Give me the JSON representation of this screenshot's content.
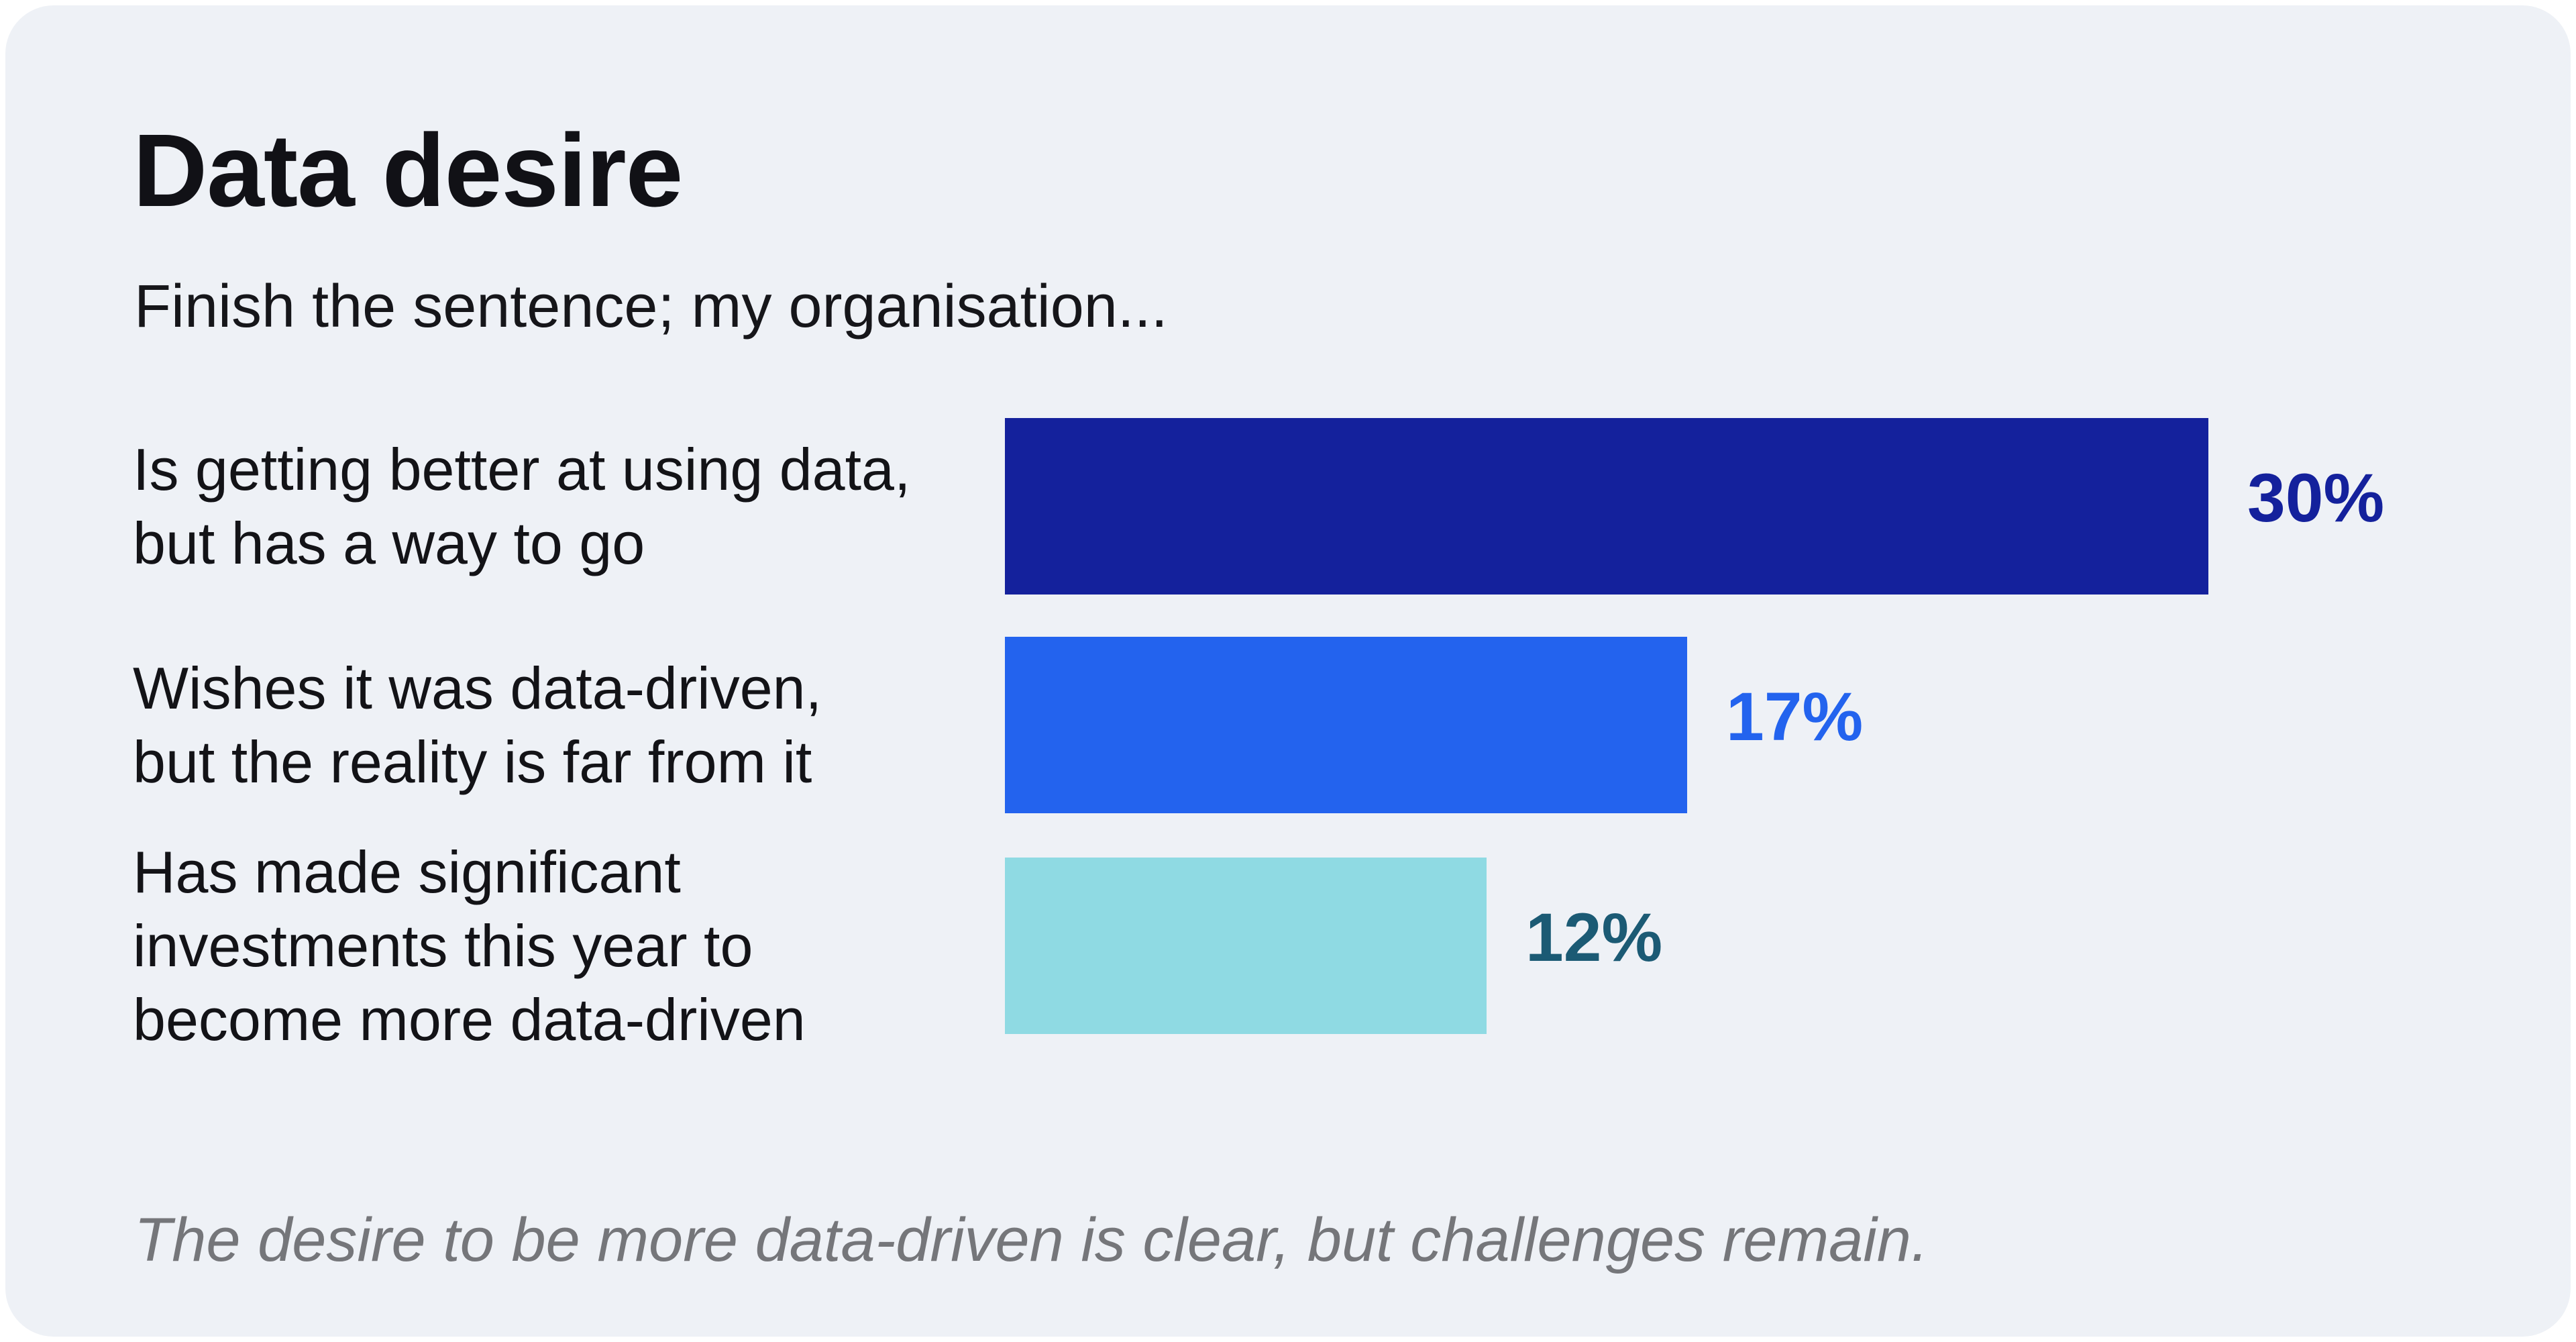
{
  "card": {
    "background_color": "#EEF1F6",
    "title": "Data desire",
    "subtitle": "Finish the sentence; my organisation...",
    "footnote": "The desire to be more data-driven is clear, but challenges remain."
  },
  "chart_data": {
    "type": "bar",
    "orientation": "horizontal",
    "title": "Data desire",
    "subtitle": "Finish the sentence; my organisation...",
    "unit": "%",
    "xlim": [
      0,
      30
    ],
    "grid": false,
    "legend": false,
    "categories": [
      "Is getting better at using data, but has a way to go",
      "Wishes it was data-driven, but the reality is far from it",
      "Has made significant investments this year to become more data-driven"
    ],
    "values": [
      30,
      17,
      12
    ],
    "rows": [
      {
        "label_lines": [
          "Is getting better at using data,",
          "but has a way to go"
        ],
        "value": 30,
        "value_label": "30%",
        "bar_color": "#14219C",
        "value_color": "#14219C"
      },
      {
        "label_lines": [
          "Wishes it was data-driven,",
          "but the reality is far from it"
        ],
        "value": 17,
        "value_label": "17%",
        "bar_color": "#2363EE",
        "value_color": "#2363EE"
      },
      {
        "label_lines": [
          "Has made significant",
          "investments this year to",
          "become more data-driven"
        ],
        "value": 12,
        "value_label": "12%",
        "bar_color": "#8FDAE3",
        "value_color": "#1B5A74"
      }
    ],
    "annotation": "The desire to be more data-driven is clear, but challenges remain."
  }
}
